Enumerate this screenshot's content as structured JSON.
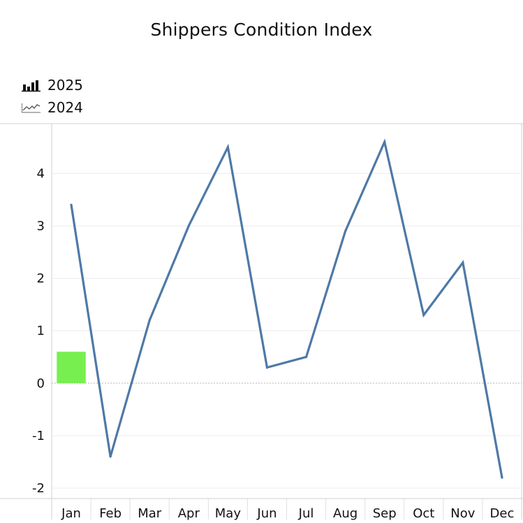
{
  "chart_data": {
    "type": "bar+line",
    "title": "Shippers Condition Index",
    "categories": [
      "Jan",
      "Feb",
      "Mar",
      "Apr",
      "May",
      "Jun",
      "Jul",
      "Aug",
      "Sep",
      "Oct",
      "Nov",
      "Dec"
    ],
    "series": [
      {
        "name": "2025",
        "type": "bar",
        "color": "#77f04f",
        "values": [
          0.6,
          null,
          null,
          null,
          null,
          null,
          null,
          null,
          null,
          null,
          null,
          null
        ]
      },
      {
        "name": "2024",
        "type": "line",
        "color": "#4e79a7",
        "values": [
          3.4,
          -1.4,
          1.2,
          3.0,
          4.5,
          0.3,
          0.5,
          2.9,
          4.6,
          1.3,
          2.3,
          -1.8
        ]
      }
    ],
    "yticks": [
      -2,
      -1,
      0,
      1,
      2,
      3,
      4
    ],
    "ylim": [
      -2.2,
      4.95
    ],
    "xlabel": "",
    "ylabel": "",
    "grid": true,
    "legend_position": "top-left"
  }
}
